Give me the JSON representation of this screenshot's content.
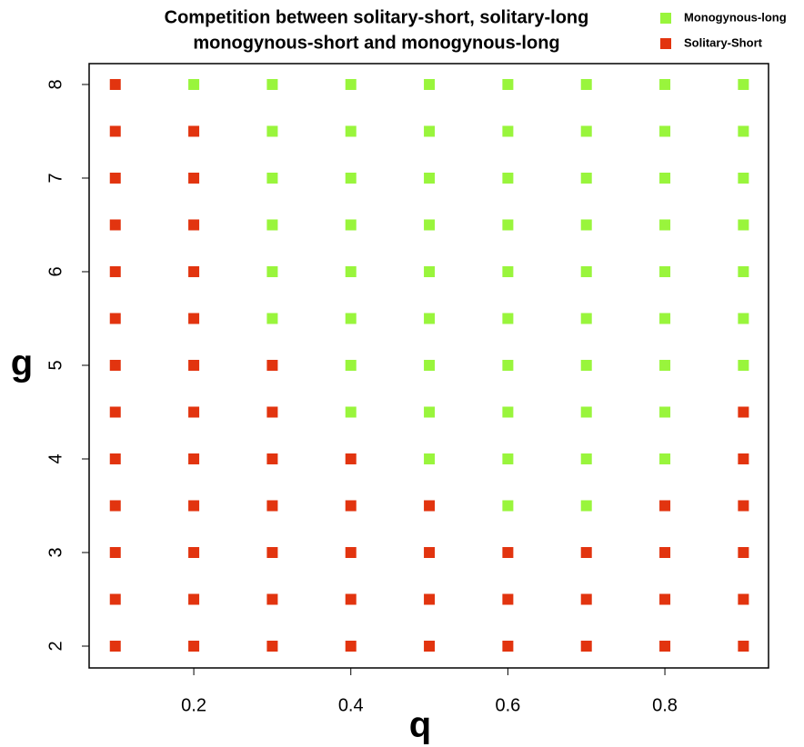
{
  "chart_data": {
    "type": "scatter",
    "title": [
      "Competition between solitary-short, solitary-long",
      "monogynous-short and monogynous-long"
    ],
    "x_label": "q",
    "y_label": "g",
    "xlim": [
      0.0667,
      0.932
    ],
    "ylim": [
      1.767,
      8.223
    ],
    "xticks": [
      0.2,
      0.4,
      0.6,
      0.8
    ],
    "yticks": [
      2,
      3,
      4,
      5,
      6,
      7,
      8
    ],
    "legend": "top-right",
    "series": [
      {
        "name": "Monogynous-long",
        "color": "#99f53c",
        "x": [
          0.2,
          0.3,
          0.4,
          0.5,
          0.6,
          0.7,
          0.8,
          0.9,
          0.3,
          0.4,
          0.5,
          0.6,
          0.7,
          0.8,
          0.9,
          0.3,
          0.4,
          0.5,
          0.6,
          0.7,
          0.8,
          0.9,
          0.3,
          0.4,
          0.5,
          0.6,
          0.7,
          0.8,
          0.9,
          0.3,
          0.4,
          0.5,
          0.6,
          0.7,
          0.8,
          0.9,
          0.3,
          0.4,
          0.5,
          0.6,
          0.7,
          0.8,
          0.9,
          0.4,
          0.5,
          0.6,
          0.7,
          0.8,
          0.9,
          0.4,
          0.5,
          0.6,
          0.7,
          0.8,
          0.5,
          0.6,
          0.7,
          0.8,
          0.6,
          0.7
        ],
        "y": [
          8,
          8,
          8,
          8,
          8,
          8,
          8,
          8,
          7.5,
          7.5,
          7.5,
          7.5,
          7.5,
          7.5,
          7.5,
          7,
          7,
          7,
          7,
          7,
          7,
          7,
          6.5,
          6.5,
          6.5,
          6.5,
          6.5,
          6.5,
          6.5,
          6,
          6,
          6,
          6,
          6,
          6,
          6,
          5.5,
          5.5,
          5.5,
          5.5,
          5.5,
          5.5,
          5.5,
          5,
          5,
          5,
          5,
          5,
          5,
          4.5,
          4.5,
          4.5,
          4.5,
          4.5,
          4,
          4,
          4,
          4,
          3.5,
          3.5
        ]
      },
      {
        "name": "Solitary-Short",
        "color": "#e2340f",
        "x": [
          0.1,
          0.1,
          0.2,
          0.1,
          0.2,
          0.1,
          0.2,
          0.1,
          0.2,
          0.1,
          0.2,
          0.1,
          0.2,
          0.3,
          0.1,
          0.2,
          0.3,
          0.9,
          0.1,
          0.2,
          0.3,
          0.4,
          0.9,
          0.1,
          0.2,
          0.3,
          0.4,
          0.5,
          0.8,
          0.9,
          0.1,
          0.2,
          0.3,
          0.4,
          0.5,
          0.6,
          0.7,
          0.8,
          0.9,
          0.1,
          0.2,
          0.3,
          0.4,
          0.5,
          0.6,
          0.7,
          0.8,
          0.9,
          0.1,
          0.2,
          0.3,
          0.4,
          0.5,
          0.6,
          0.7,
          0.8,
          0.9
        ],
        "y": [
          8,
          7.5,
          7.5,
          7,
          7,
          6.5,
          6.5,
          6,
          6,
          5.5,
          5.5,
          5,
          5,
          5,
          4.5,
          4.5,
          4.5,
          4.5,
          4,
          4,
          4,
          4,
          4,
          3.5,
          3.5,
          3.5,
          3.5,
          3.5,
          3.5,
          3.5,
          3,
          3,
          3,
          3,
          3,
          3,
          3,
          3,
          3,
          2.5,
          2.5,
          2.5,
          2.5,
          2.5,
          2.5,
          2.5,
          2.5,
          2.5,
          2,
          2,
          2,
          2,
          2,
          2,
          2,
          2,
          2
        ]
      }
    ]
  }
}
